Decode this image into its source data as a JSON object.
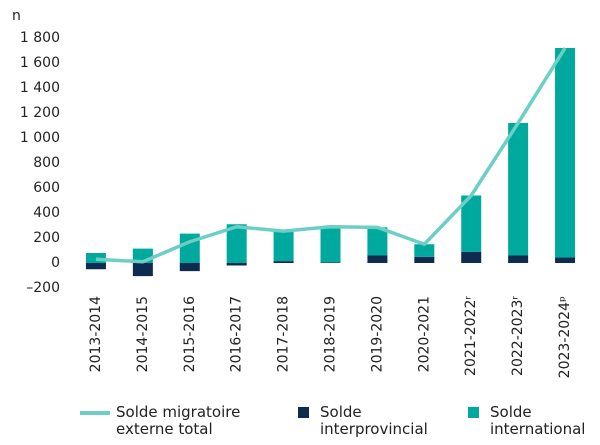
{
  "chart_data": {
    "type": "bar",
    "y_label": "n",
    "categories": [
      "2013-2014",
      "2014-2015",
      "2015-2016",
      "2016-2017",
      "2017-2018",
      "2018-2019",
      "2019-2020",
      "2020-2021",
      "2021-2022ʳ",
      "2022-2023ʳ",
      "2023-2024ᵖ"
    ],
    "series": [
      {
        "name": "Solde migratoire externe total",
        "type": "line",
        "color": "#6ccfc5",
        "values": [
          30,
          10,
          170,
          290,
          255,
          290,
          285,
          150,
          540,
          1120,
          1720
        ]
      },
      {
        "name": "Solde interprovincial",
        "type": "bar",
        "color": "#0e2b50",
        "values": [
          -50,
          -105,
          -65,
          -20,
          15,
          5,
          60,
          50,
          90,
          60,
          45
        ]
      },
      {
        "name": "Solde international",
        "type": "bar",
        "color": "#00a99d",
        "values": [
          80,
          115,
          235,
          310,
          240,
          285,
          225,
          100,
          450,
          1060,
          1675
        ]
      }
    ],
    "ylim": [
      -200,
      1800
    ],
    "yticks": [
      {
        "value": -200,
        "label": "–200"
      },
      0,
      200,
      400,
      600,
      800,
      {
        "value": 1000,
        "label": "1 000"
      },
      {
        "value": 1200,
        "label": "1 200"
      },
      {
        "value": 1400,
        "label": "1 400"
      },
      {
        "value": 1600,
        "label": "1 600"
      },
      {
        "value": 1800,
        "label": "1 800"
      }
    ],
    "grid": false
  }
}
